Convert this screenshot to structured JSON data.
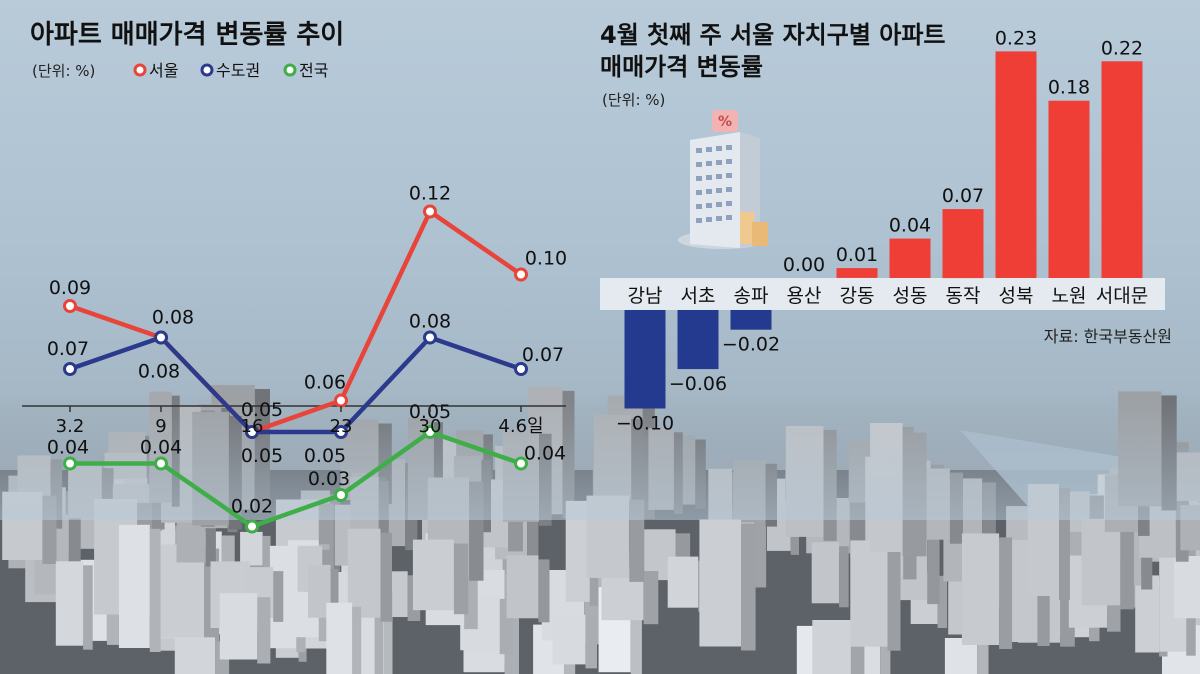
{
  "colors": {
    "seoul": "#e8443a",
    "capital": "#2b3a8c",
    "national": "#3fae49",
    "bar_pos": "#ef3e36",
    "bar_neg": "#243a8f"
  },
  "chart_data": [
    {
      "type": "line",
      "title": "아파트 매매가격 변동률 추이",
      "unit": "(단위: %)",
      "x": [
        "3.2",
        "9",
        "16",
        "23",
        "30",
        "4.6일"
      ],
      "series": [
        {
          "name": "서울",
          "values": [
            0.09,
            0.08,
            0.05,
            0.06,
            0.12,
            0.1
          ],
          "labels": [
            "0.09",
            "0.08",
            "0.05",
            "0.06",
            "0.12",
            "0.10"
          ]
        },
        {
          "name": "수도권",
          "values": [
            0.07,
            0.08,
            0.05,
            0.05,
            0.08,
            0.07
          ],
          "labels": [
            "0.07",
            "0.08",
            "0.05",
            "0.05",
            "0.08",
            "0.07"
          ]
        },
        {
          "name": "전국",
          "values": [
            0.04,
            0.04,
            0.02,
            0.03,
            0.05,
            0.04
          ],
          "labels": [
            "0.04",
            "0.04",
            "0.02",
            "0.03",
            "0.05",
            "0.04"
          ]
        }
      ],
      "legend": "top-left"
    },
    {
      "type": "bar",
      "title_lines": [
        "4월 첫째 주 서울 자치구별 아파트",
        "매매가격 변동률"
      ],
      "unit": "(단위: %)",
      "categories": [
        "강남",
        "서초",
        "송파",
        "용산",
        "강동",
        "성동",
        "동작",
        "성북",
        "노원",
        "서대문"
      ],
      "values": [
        -0.1,
        -0.06,
        -0.02,
        0.0,
        0.01,
        0.04,
        0.07,
        0.23,
        0.18,
        0.22
      ],
      "labels": [
        "−0.10",
        "−0.06",
        "−0.02",
        "0.00",
        "0.01",
        "0.04",
        "0.07",
        "0.23",
        "0.18",
        "0.22"
      ],
      "source": "자료: 한국부동산원"
    }
  ]
}
